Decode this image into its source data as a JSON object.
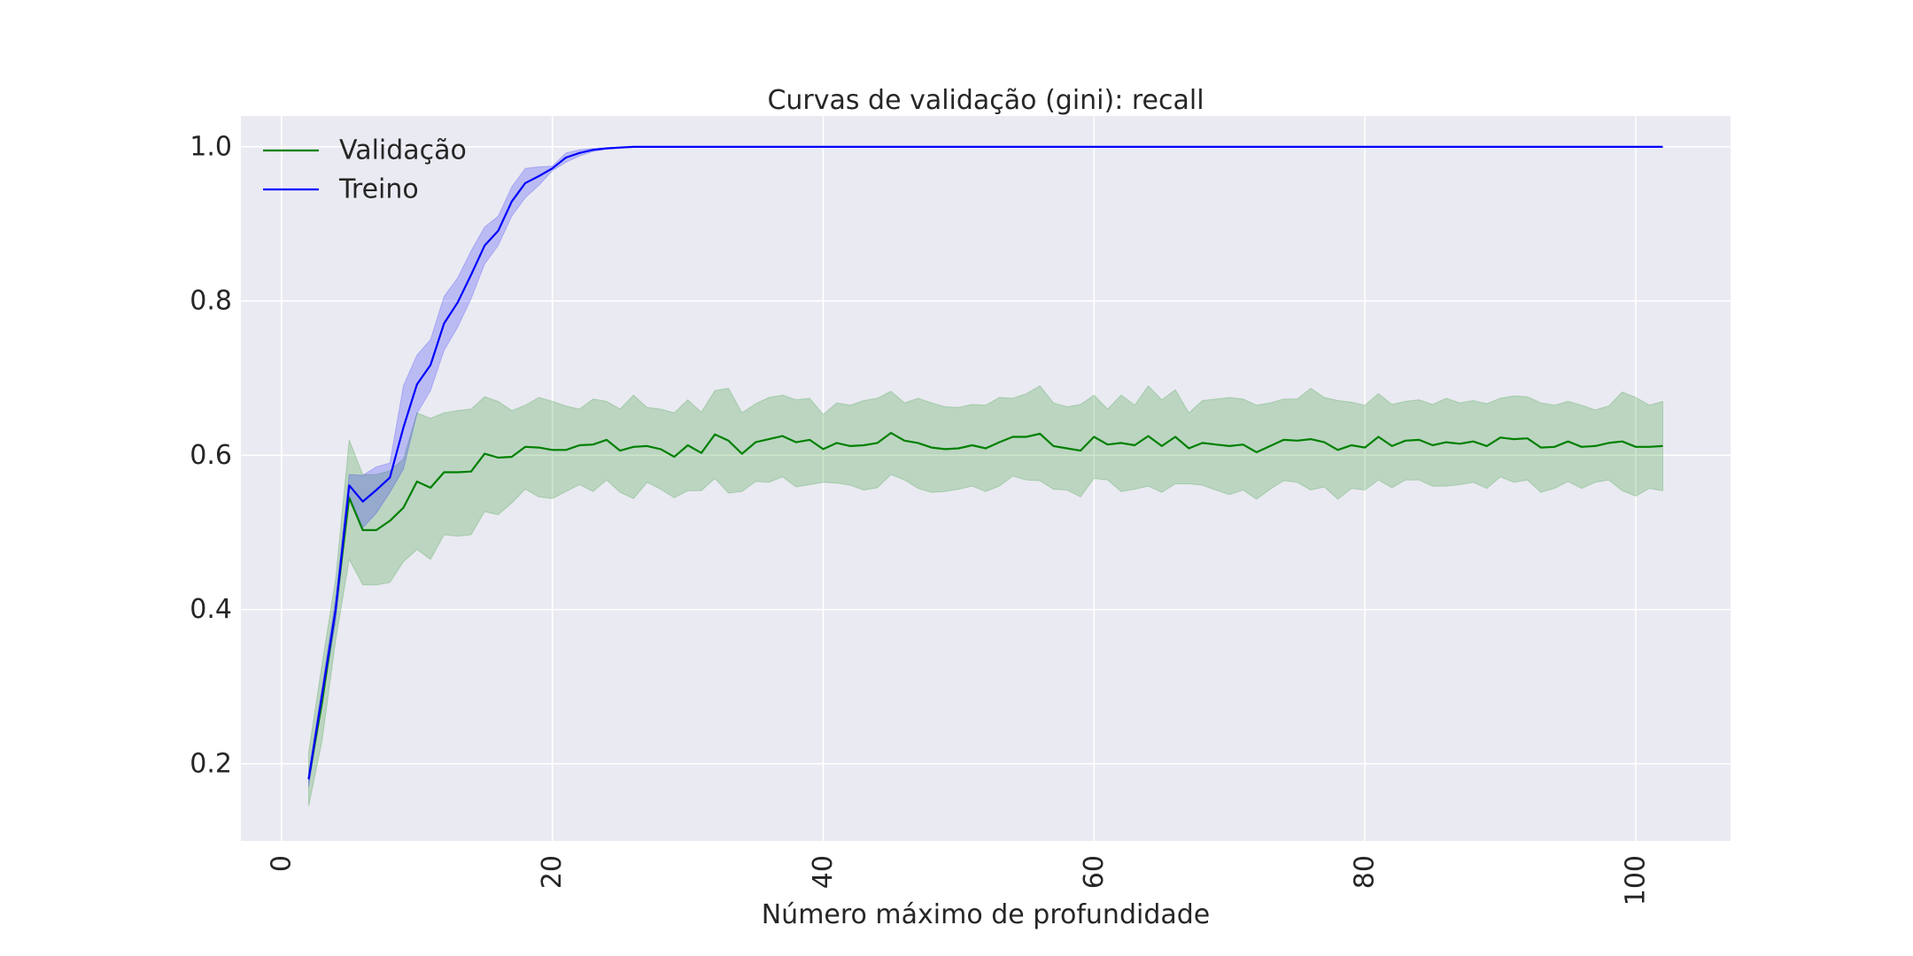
{
  "chart_data": {
    "type": "line",
    "title": "Curvas de validação (gini): recall",
    "xlabel": "Número máximo de profundidade",
    "ylabel": "",
    "xlim": [
      -3,
      107
    ],
    "ylim": [
      0.1,
      1.04
    ],
    "xticks": [
      0,
      20,
      40,
      60,
      80,
      100
    ],
    "xtick_labels": [
      "0",
      "20",
      "40",
      "60",
      "80",
      "100"
    ],
    "yticks": [
      0.2,
      0.4,
      0.6,
      0.8,
      1.0
    ],
    "ytick_labels": [
      "0.2",
      "0.4",
      "0.6",
      "0.8",
      "1.0"
    ],
    "grid": true,
    "legend_position": "top-left",
    "background": "#eaeaf2",
    "x": [
      2,
      3,
      4,
      5,
      6,
      7,
      8,
      9,
      10,
      11,
      12,
      13,
      14,
      15,
      16,
      17,
      18,
      19,
      20,
      21,
      22,
      23,
      24,
      25,
      26,
      27,
      28,
      29,
      30,
      31,
      32,
      33,
      34,
      35,
      36,
      37,
      38,
      39,
      40,
      41,
      42,
      43,
      44,
      45,
      46,
      47,
      48,
      49,
      50,
      51,
      52,
      53,
      54,
      55,
      56,
      57,
      58,
      59,
      60,
      61,
      62,
      63,
      64,
      65,
      66,
      67,
      68,
      69,
      70,
      71,
      72,
      73,
      74,
      75,
      76,
      77,
      78,
      79,
      80,
      81,
      82,
      83,
      84,
      85,
      86,
      87,
      88,
      89,
      90,
      91,
      92,
      93,
      94,
      95,
      96,
      97,
      98,
      99,
      100,
      101,
      102
    ],
    "series": [
      {
        "name": "Validação",
        "color": "#008000",
        "values": [
          0.18,
          0.28,
          0.4,
          0.545,
          0.503,
          0.503,
          0.515,
          0.532,
          0.566,
          0.558,
          0.578,
          0.578,
          0.579,
          0.602,
          0.597,
          0.598,
          0.611,
          0.61,
          0.607,
          0.607,
          0.613,
          0.614,
          0.62,
          0.606,
          0.611,
          0.612,
          0.608,
          0.598,
          0.613,
          0.603,
          0.627,
          0.619,
          0.602,
          0.617,
          0.621,
          0.625,
          0.617,
          0.62,
          0.608,
          0.616,
          0.612,
          0.613,
          0.616,
          0.629,
          0.619,
          0.616,
          0.61,
          0.608,
          0.609,
          0.613,
          0.609,
          0.617,
          0.624,
          0.624,
          0.628,
          0.612,
          0.609,
          0.606,
          0.624,
          0.614,
          0.616,
          0.613,
          0.625,
          0.612,
          0.624,
          0.609,
          0.616,
          0.614,
          0.612,
          0.614,
          0.604,
          0.612,
          0.62,
          0.619,
          0.621,
          0.617,
          0.607,
          0.613,
          0.61,
          0.624,
          0.612,
          0.619,
          0.62,
          0.613,
          0.617,
          0.615,
          0.618,
          0.612,
          0.623,
          0.621,
          0.622,
          0.61,
          0.611,
          0.618,
          0.611,
          0.612,
          0.616,
          0.618,
          0.611,
          0.611,
          0.612
        ],
        "band_upper": [
          0.215,
          0.33,
          0.44,
          0.62,
          0.575,
          0.575,
          0.58,
          0.595,
          0.655,
          0.648,
          0.655,
          0.658,
          0.66,
          0.676,
          0.67,
          0.658,
          0.665,
          0.675,
          0.67,
          0.664,
          0.66,
          0.673,
          0.67,
          0.66,
          0.678,
          0.662,
          0.66,
          0.655,
          0.672,
          0.656,
          0.684,
          0.687,
          0.655,
          0.667,
          0.675,
          0.678,
          0.672,
          0.674,
          0.653,
          0.668,
          0.665,
          0.671,
          0.674,
          0.683,
          0.668,
          0.674,
          0.668,
          0.663,
          0.662,
          0.666,
          0.665,
          0.675,
          0.674,
          0.68,
          0.69,
          0.668,
          0.663,
          0.666,
          0.678,
          0.66,
          0.678,
          0.665,
          0.69,
          0.672,
          0.685,
          0.655,
          0.671,
          0.673,
          0.675,
          0.673,
          0.665,
          0.668,
          0.673,
          0.673,
          0.687,
          0.675,
          0.671,
          0.669,
          0.665,
          0.68,
          0.666,
          0.67,
          0.672,
          0.666,
          0.674,
          0.668,
          0.671,
          0.667,
          0.674,
          0.677,
          0.676,
          0.668,
          0.665,
          0.67,
          0.665,
          0.659,
          0.664,
          0.682,
          0.675,
          0.665,
          0.67
        ],
        "band_lower": [
          0.145,
          0.23,
          0.36,
          0.465,
          0.432,
          0.432,
          0.435,
          0.462,
          0.478,
          0.465,
          0.497,
          0.495,
          0.497,
          0.527,
          0.523,
          0.538,
          0.556,
          0.546,
          0.544,
          0.553,
          0.562,
          0.553,
          0.568,
          0.552,
          0.544,
          0.565,
          0.556,
          0.545,
          0.554,
          0.554,
          0.57,
          0.551,
          0.553,
          0.566,
          0.565,
          0.572,
          0.559,
          0.562,
          0.565,
          0.564,
          0.561,
          0.555,
          0.558,
          0.575,
          0.568,
          0.557,
          0.552,
          0.553,
          0.556,
          0.56,
          0.553,
          0.56,
          0.573,
          0.568,
          0.567,
          0.556,
          0.555,
          0.546,
          0.57,
          0.568,
          0.553,
          0.556,
          0.56,
          0.552,
          0.563,
          0.563,
          0.561,
          0.555,
          0.549,
          0.555,
          0.543,
          0.556,
          0.567,
          0.565,
          0.555,
          0.559,
          0.543,
          0.557,
          0.555,
          0.568,
          0.558,
          0.568,
          0.568,
          0.56,
          0.56,
          0.562,
          0.565,
          0.557,
          0.572,
          0.565,
          0.568,
          0.552,
          0.557,
          0.566,
          0.557,
          0.565,
          0.568,
          0.554,
          0.547,
          0.557,
          0.554
        ]
      },
      {
        "name": "Treino",
        "color": "#0000ff",
        "values": [
          0.18,
          0.29,
          0.4,
          0.561,
          0.54,
          0.555,
          0.571,
          0.636,
          0.692,
          0.717,
          0.771,
          0.798,
          0.834,
          0.872,
          0.891,
          0.929,
          0.953,
          0.962,
          0.972,
          0.986,
          0.992,
          0.996,
          0.998,
          0.999,
          1.0,
          1.0,
          1.0,
          1.0,
          1.0,
          1.0,
          1.0,
          1.0,
          1.0,
          1.0,
          1.0,
          1.0,
          1.0,
          1.0,
          1.0,
          1.0,
          1.0,
          1.0,
          1.0,
          1.0,
          1.0,
          1.0,
          1.0,
          1.0,
          1.0,
          1.0,
          1.0,
          1.0,
          1.0,
          1.0,
          1.0,
          1.0,
          1.0,
          1.0,
          1.0,
          1.0,
          1.0,
          1.0,
          1.0,
          1.0,
          1.0,
          1.0,
          1.0,
          1.0,
          1.0,
          1.0,
          1.0,
          1.0,
          1.0,
          1.0,
          1.0,
          1.0,
          1.0,
          1.0,
          1.0,
          1.0,
          1.0,
          1.0,
          1.0,
          1.0,
          1.0,
          1.0,
          1.0,
          1.0,
          1.0,
          1.0,
          1.0,
          1.0,
          1.0,
          1.0,
          1.0,
          1.0,
          1.0,
          1.0,
          1.0,
          1.0,
          1.0
        ],
        "band_upper": [
          0.19,
          0.3,
          0.415,
          0.575,
          0.574,
          0.585,
          0.59,
          0.69,
          0.73,
          0.75,
          0.806,
          0.83,
          0.865,
          0.896,
          0.91,
          0.948,
          0.972,
          0.974,
          0.975,
          0.992,
          0.996,
          0.998,
          0.999,
          1.0,
          1.0,
          1.0,
          1.0,
          1.0,
          1.0,
          1.0,
          1.0,
          1.0,
          1.0,
          1.0,
          1.0,
          1.0,
          1.0,
          1.0,
          1.0,
          1.0,
          1.0,
          1.0,
          1.0,
          1.0,
          1.0,
          1.0,
          1.0,
          1.0,
          1.0,
          1.0,
          1.0,
          1.0,
          1.0,
          1.0,
          1.0,
          1.0,
          1.0,
          1.0,
          1.0,
          1.0,
          1.0,
          1.0,
          1.0,
          1.0,
          1.0,
          1.0,
          1.0,
          1.0,
          1.0,
          1.0,
          1.0,
          1.0,
          1.0,
          1.0,
          1.0,
          1.0,
          1.0,
          1.0,
          1.0,
          1.0,
          1.0,
          1.0,
          1.0,
          1.0,
          1.0,
          1.0,
          1.0,
          1.0,
          1.0,
          1.0,
          1.0,
          1.0,
          1.0,
          1.0,
          1.0,
          1.0,
          1.0,
          1.0,
          1.0,
          1.0,
          1.0
        ],
        "band_lower": [
          0.17,
          0.28,
          0.385,
          0.547,
          0.506,
          0.525,
          0.552,
          0.582,
          0.654,
          0.684,
          0.736,
          0.766,
          0.803,
          0.848,
          0.872,
          0.91,
          0.934,
          0.95,
          0.969,
          0.98,
          0.988,
          0.994,
          0.997,
          0.998,
          1.0,
          1.0,
          1.0,
          1.0,
          1.0,
          1.0,
          1.0,
          1.0,
          1.0,
          1.0,
          1.0,
          1.0,
          1.0,
          1.0,
          1.0,
          1.0,
          1.0,
          1.0,
          1.0,
          1.0,
          1.0,
          1.0,
          1.0,
          1.0,
          1.0,
          1.0,
          1.0,
          1.0,
          1.0,
          1.0,
          1.0,
          1.0,
          1.0,
          1.0,
          1.0,
          1.0,
          1.0,
          1.0,
          1.0,
          1.0,
          1.0,
          1.0,
          1.0,
          1.0,
          1.0,
          1.0,
          1.0,
          1.0,
          1.0,
          1.0,
          1.0,
          1.0,
          1.0,
          1.0,
          1.0,
          1.0,
          1.0,
          1.0,
          1.0,
          1.0,
          1.0,
          1.0,
          1.0,
          1.0,
          1.0,
          1.0,
          1.0,
          1.0,
          1.0,
          1.0,
          1.0,
          1.0,
          1.0,
          1.0,
          1.0,
          1.0,
          1.0
        ]
      }
    ]
  }
}
